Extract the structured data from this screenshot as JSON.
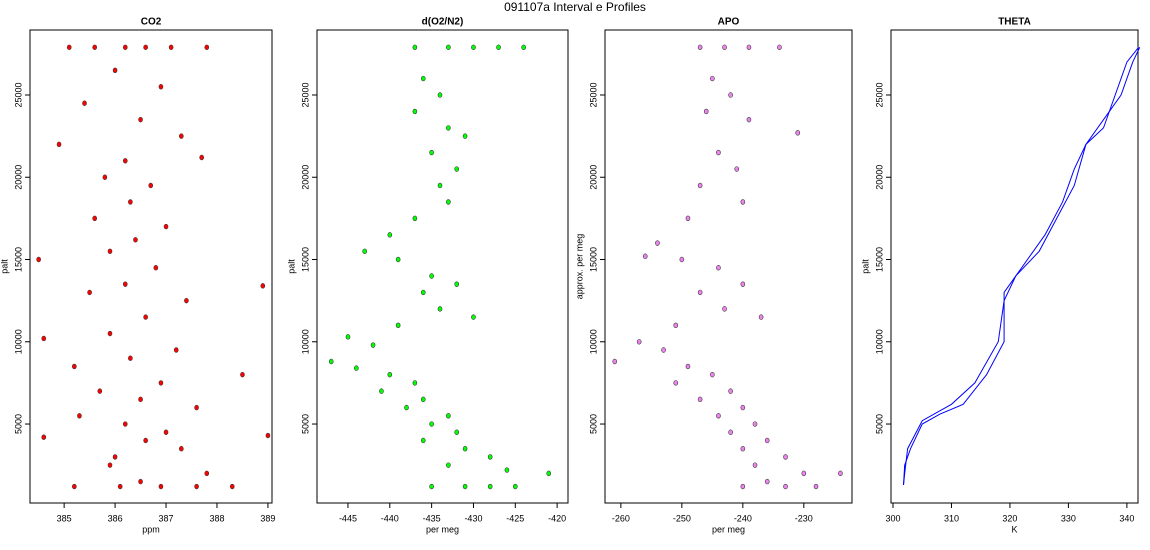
{
  "title": "091107a   Interval e Profiles",
  "chart_data": [
    {
      "type": "scatter",
      "title": "CO2",
      "xlabel": "ppm",
      "ylabel": "palt",
      "xlim": [
        384.33,
        389.08
      ],
      "ylim": [
        200,
        28950
      ],
      "xticks": [
        385,
        386,
        387,
        388,
        389
      ],
      "yticks": [
        5000,
        10000,
        15000,
        20000,
        25000
      ],
      "series": [
        {
          "color": "#ff0000",
          "x": [
            385.1,
            385.6,
            386.2,
            386.6,
            387.1,
            387.8,
            386.0,
            386.9,
            385.4,
            386.5,
            387.3,
            384.9,
            386.2,
            387.7,
            385.8,
            386.7,
            386.3,
            385.6,
            387.0,
            386.4,
            384.5,
            385.9,
            386.8,
            386.2,
            388.9,
            385.5,
            387.4,
            386.6,
            384.6,
            385.9,
            387.2,
            386.3,
            385.2,
            388.5,
            386.9,
            385.7,
            386.5,
            387.6,
            385.3,
            386.2,
            387.0,
            384.6,
            386.6,
            389.0,
            387.3,
            386.0,
            385.9,
            387.8,
            386.5,
            385.2,
            386.1,
            386.9,
            387.6,
            388.3
          ],
          "y": [
            27900,
            27900,
            27900,
            27900,
            27900,
            27900,
            26500,
            25500,
            24500,
            23500,
            22500,
            22000,
            21000,
            21200,
            20000,
            19500,
            18500,
            17500,
            17000,
            16200,
            15000,
            15500,
            14500,
            13500,
            13400,
            13000,
            12500,
            11500,
            10200,
            10500,
            9500,
            9000,
            8500,
            8000,
            7500,
            7000,
            6500,
            6000,
            5500,
            5000,
            4500,
            4200,
            4000,
            4300,
            3500,
            3000,
            2500,
            2000,
            1500,
            1200,
            1200,
            1200,
            1200,
            1200
          ]
        }
      ]
    },
    {
      "type": "scatter",
      "title": "d(O2/N2)",
      "xlabel": "per meg",
      "ylabel": "palt",
      "xlim": [
        -448.7,
        -418.7
      ],
      "ylim": [
        200,
        28950
      ],
      "xticks": [
        -445,
        -440,
        -435,
        -430,
        -425,
        -420
      ],
      "yticks": [
        5000,
        10000,
        15000,
        20000,
        25000
      ],
      "series": [
        {
          "color": "#00ff00",
          "x": [
            -437,
            -433,
            -430,
            -427,
            -424,
            -436,
            -434,
            -437,
            -433,
            -431,
            -435,
            -432,
            -434,
            -433,
            -437,
            -440,
            -443,
            -439,
            -435,
            -432,
            -436,
            -434,
            -430,
            -439,
            -445,
            -442,
            -447,
            -444,
            -440,
            -437,
            -441,
            -436,
            -438,
            -433,
            -435,
            -432,
            -436,
            -431,
            -428,
            -433,
            -426,
            -421,
            -431,
            -428,
            -425,
            -435
          ],
          "y": [
            27900,
            27900,
            27900,
            27900,
            27900,
            26000,
            25000,
            24000,
            23000,
            22500,
            21500,
            20500,
            19500,
            18500,
            17500,
            16500,
            15500,
            15000,
            14000,
            13500,
            13000,
            12000,
            11500,
            11000,
            10300,
            9800,
            8800,
            8400,
            8000,
            7500,
            7000,
            6500,
            6000,
            5500,
            5000,
            4500,
            4000,
            3500,
            3000,
            2500,
            2200,
            2000,
            1200,
            1200,
            1200,
            1200
          ]
        }
      ]
    },
    {
      "type": "scatter",
      "title": "APO",
      "xlabel": "per meg",
      "ylabel": "approx. per meg",
      "xlim": [
        -262.6,
        -222.1
      ],
      "ylim": [
        200,
        28950
      ],
      "xticks": [
        -260,
        -250,
        -240,
        -230
      ],
      "yticks": [
        5000,
        10000,
        15000,
        20000,
        25000
      ],
      "series": [
        {
          "color": "#ee82ee",
          "x": [
            -247,
            -243,
            -239,
            -234,
            -245,
            -242,
            -246,
            -239,
            -231,
            -244,
            -241,
            -247,
            -240,
            -249,
            -254,
            -256,
            -250,
            -244,
            -240,
            -247,
            -243,
            -237,
            -251,
            -257,
            -253,
            -261,
            -249,
            -245,
            -251,
            -242,
            -247,
            -240,
            -244,
            -238,
            -242,
            -236,
            -240,
            -233,
            -238,
            -230,
            -224,
            -236,
            -240,
            -233,
            -228
          ],
          "y": [
            27900,
            27900,
            27900,
            27900,
            26000,
            25000,
            24000,
            23500,
            22700,
            21500,
            20500,
            19500,
            18500,
            17500,
            16000,
            15200,
            15000,
            14500,
            13500,
            13000,
            12000,
            11500,
            11000,
            10000,
            9500,
            8800,
            8500,
            8000,
            7500,
            7000,
            6500,
            6000,
            5500,
            5000,
            4500,
            4000,
            3500,
            3000,
            2500,
            2000,
            2000,
            1500,
            1200,
            1200,
            1200
          ]
        }
      ]
    },
    {
      "type": "line",
      "title": "THETA",
      "xlabel": "K",
      "ylabel": "palt",
      "xlim": [
        299.66,
        341.9
      ],
      "ylim": [
        200,
        28950
      ],
      "xticks": [
        300,
        310,
        320,
        330,
        340
      ],
      "yticks": [
        5000,
        10000,
        15000,
        20000,
        25000
      ],
      "series": [
        {
          "color": "#0000ff",
          "x": [
            301.8,
            302,
            303,
            305,
            308,
            312,
            316,
            319,
            319,
            322,
            326,
            329,
            331,
            333,
            336,
            338,
            340,
            342
          ],
          "y": [
            1300,
            2500,
            3500,
            5000,
            5600,
            6200,
            8000,
            10000,
            13000,
            14500,
            16500,
            18500,
            20500,
            22000,
            23000,
            25000,
            27000,
            27900
          ]
        },
        {
          "color": "#0000ff",
          "x": [
            342.2,
            341,
            339,
            336,
            333,
            331,
            328,
            325,
            321,
            319,
            318,
            314,
            310,
            305,
            302.5,
            302,
            301.8
          ],
          "y": [
            27900,
            27000,
            25000,
            23500,
            22000,
            19500,
            17500,
            15500,
            14000,
            12500,
            10000,
            7500,
            6200,
            5200,
            3500,
            2000,
            1300
          ]
        }
      ]
    }
  ]
}
